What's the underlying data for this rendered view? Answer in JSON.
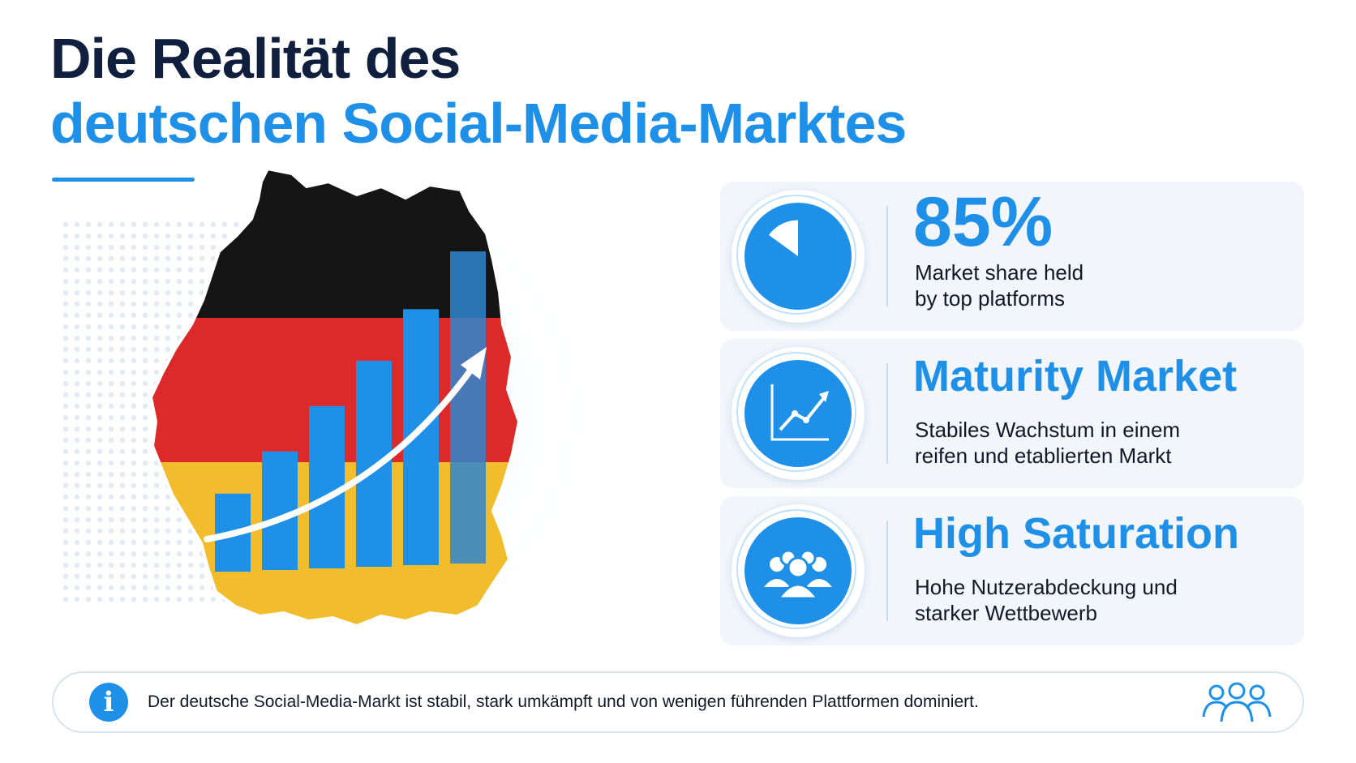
{
  "title": {
    "line1": "Die Realität des",
    "line2": "deutschen Social-Media-Marktes"
  },
  "illustration": {
    "map_icon": "germany-flag-map",
    "chart_icon": "rising-bar-chart",
    "arrow_icon": "growth-arrow",
    "bar_levels": [
      0.25,
      0.38,
      0.52,
      0.66,
      0.82,
      1.0
    ]
  },
  "cards": [
    {
      "icon": "pie-chart-icon",
      "heading": "85%",
      "desc_line1": "Market share held",
      "desc_line2": "by top platforms",
      "pie_share": 0.85
    },
    {
      "icon": "line-chart-icon",
      "heading": "Maturity Market",
      "desc_line1": "Stabiles Wachstum in einem",
      "desc_line2": "reifen und etablierten Markt"
    },
    {
      "icon": "group-icon",
      "heading": "High Saturation",
      "desc_line1": "Hohe Nutzerabdeckung und",
      "desc_line2": "starker Wettbewerb"
    }
  ],
  "info": {
    "icon": "info-icon",
    "icon_glyph": "i",
    "text": "Der deutsche Social-Media-Markt ist stabil, stark umkämpft und von wenigen führenden Plattformen dominiert.",
    "right_icon": "people-outline-icon"
  },
  "colors": {
    "accent": "#1e90e8",
    "dark_text": "#0f1f3d",
    "flag_black": "#151515",
    "flag_red": "#dc2a2a",
    "flag_gold": "#f2bd2c",
    "card_bg": "#f2f6fb"
  }
}
